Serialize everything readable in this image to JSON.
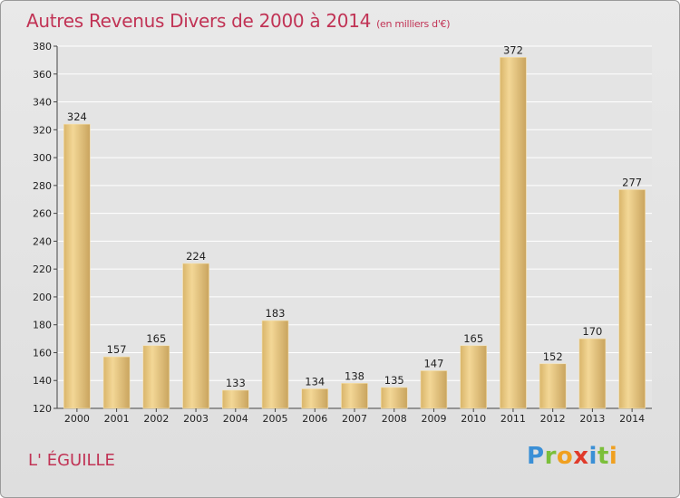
{
  "chart_data": {
    "type": "bar",
    "title": "Autres Revenus Divers de 2000 à 2014",
    "subtitle": "(en milliers d'€)",
    "categories": [
      "2000",
      "2001",
      "2002",
      "2003",
      "2004",
      "2005",
      "2006",
      "2007",
      "2008",
      "2009",
      "2010",
      "2011",
      "2012",
      "2013",
      "2014"
    ],
    "values": [
      324,
      157,
      165,
      224,
      133,
      183,
      134,
      138,
      135,
      147,
      165,
      372,
      152,
      170,
      277
    ],
    "ylim": [
      120,
      380
    ],
    "yticks": [
      120,
      140,
      160,
      180,
      200,
      220,
      240,
      260,
      280,
      300,
      320,
      340,
      360,
      380
    ],
    "grid": true,
    "bar_color": "#e8c882",
    "text_color": "#c13355"
  },
  "commune": "L' ÉGUILLE",
  "logo": {
    "letters": [
      "P",
      "r",
      "o",
      "x",
      "i",
      "t",
      "i"
    ],
    "colors": [
      "#3a8fd6",
      "#7bbf3a",
      "#f0a020",
      "#e03a2a",
      "#3a8fd6",
      "#7bbf3a",
      "#f0a020"
    ]
  }
}
